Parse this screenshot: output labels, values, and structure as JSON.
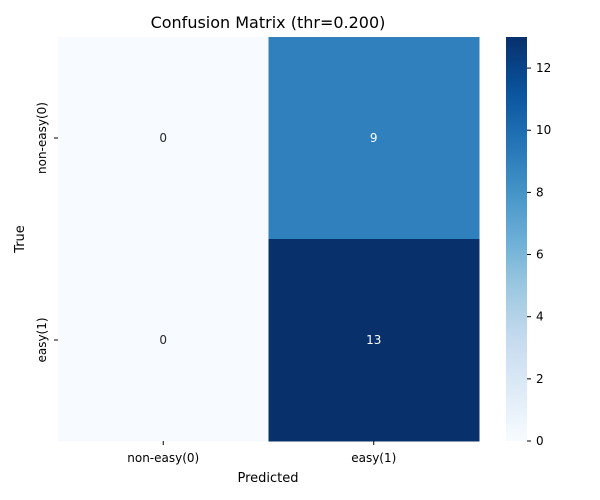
{
  "chart_data": {
    "type": "heatmap",
    "title": "Confusion Matrix (thr=0.200)",
    "xlabel": "Predicted",
    "ylabel": "True",
    "x_categories": [
      "non-easy(0)",
      "easy(1)"
    ],
    "y_categories": [
      "non-easy(0)",
      "easy(1)"
    ],
    "values": [
      [
        0,
        9
      ],
      [
        0,
        13
      ]
    ],
    "colorbar": {
      "min": 0,
      "max": 13,
      "ticks": [
        0,
        2,
        4,
        6,
        8,
        10,
        12
      ]
    },
    "colormap": [
      "#f7fbff",
      "#deebf7",
      "#c6dbef",
      "#9ecae1",
      "#6baed6",
      "#4292c6",
      "#2171b5",
      "#08519c",
      "#08306b"
    ]
  }
}
